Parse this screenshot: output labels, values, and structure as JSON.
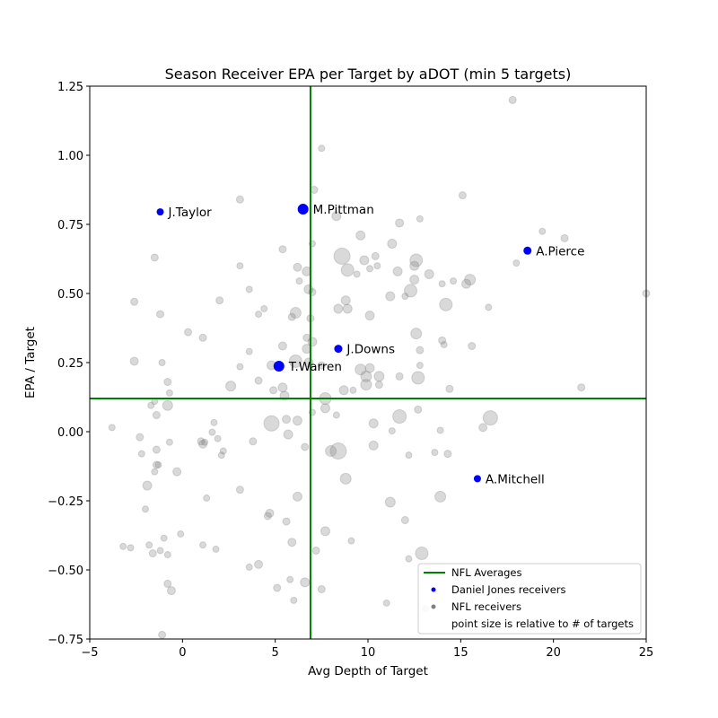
{
  "chart_data": {
    "type": "scatter",
    "title": "Season Receiver EPA per Target by aDOT (min 5 targets)",
    "xlabel": "Avg Depth of Target",
    "ylabel": "EPA / Target",
    "xlim": [
      -5,
      25
    ],
    "ylim": [
      -0.75,
      1.25
    ],
    "xticks": [
      "−5",
      "0",
      "5",
      "10",
      "15",
      "20",
      "25"
    ],
    "yticks": [
      "−0.75",
      "−0.50",
      "−0.25",
      "0.00",
      "0.25",
      "0.50",
      "0.75",
      "1.00",
      "1.25"
    ],
    "grid": false,
    "legend_position": "lower-right",
    "averages": {
      "x": 6.9,
      "y": 0.12,
      "color": "#008000"
    },
    "colors": {
      "highlight": "#0000ff",
      "background": "#808080"
    },
    "highlighted_series": {
      "name": "Daniel Jones receivers",
      "points": [
        {
          "label": "J.Taylor",
          "x": -1.2,
          "y": 0.795,
          "size": 4
        },
        {
          "label": "M.Pittman",
          "x": 6.5,
          "y": 0.805,
          "size": 6
        },
        {
          "label": "A.Pierce",
          "x": 18.6,
          "y": 0.655,
          "size": 4.5
        },
        {
          "label": "J.Downs",
          "x": 8.4,
          "y": 0.3,
          "size": 4.5
        },
        {
          "label": "T.Warren",
          "x": 5.2,
          "y": 0.237,
          "size": 6
        },
        {
          "label": "A.Mitchell",
          "x": 15.9,
          "y": -0.17,
          "size": 4
        }
      ]
    },
    "background_series": {
      "name": "NFL receivers",
      "points": [
        [
          17.8,
          1.2,
          4
        ],
        [
          7.5,
          1.025,
          3.5
        ],
        [
          7.1,
          0.875,
          4
        ],
        [
          3.1,
          0.84,
          4
        ],
        [
          15.1,
          0.855,
          4
        ],
        [
          8.3,
          0.78,
          5
        ],
        [
          11.7,
          0.755,
          4.5
        ],
        [
          12.8,
          0.77,
          3.5
        ],
        [
          9.6,
          0.71,
          5
        ],
        [
          19.4,
          0.725,
          3.5
        ],
        [
          20.6,
          0.7,
          4
        ],
        [
          5.4,
          0.66,
          4
        ],
        [
          7.0,
          0.68,
          3.5
        ],
        [
          11.3,
          0.68,
          5
        ],
        [
          8.6,
          0.635,
          9
        ],
        [
          9.8,
          0.62,
          5
        ],
        [
          10.4,
          0.635,
          4
        ],
        [
          12.6,
          0.62,
          7
        ],
        [
          18.0,
          0.61,
          3.5
        ],
        [
          3.1,
          0.6,
          3.5
        ],
        [
          6.2,
          0.595,
          4.5
        ],
        [
          6.7,
          0.58,
          5
        ],
        [
          8.9,
          0.585,
          7
        ],
        [
          9.4,
          0.57,
          3.5
        ],
        [
          10.1,
          0.59,
          3.5
        ],
        [
          10.5,
          0.6,
          3.5
        ],
        [
          11.6,
          0.58,
          5
        ],
        [
          12.5,
          0.6,
          5
        ],
        [
          13.3,
          0.57,
          5
        ],
        [
          14.0,
          0.535,
          3.5
        ],
        [
          14.6,
          0.545,
          3.5
        ],
        [
          15.3,
          0.535,
          5
        ],
        [
          15.5,
          0.55,
          6
        ],
        [
          6.3,
          0.545,
          3.5
        ],
        [
          12.5,
          0.55,
          5
        ],
        [
          -1.5,
          0.63,
          4
        ],
        [
          3.6,
          0.515,
          3.5
        ],
        [
          6.8,
          0.515,
          5
        ],
        [
          7.0,
          0.505,
          4
        ],
        [
          11.2,
          0.49,
          5
        ],
        [
          12.3,
          0.51,
          7
        ],
        [
          12.0,
          0.49,
          3.5
        ],
        [
          14.2,
          0.46,
          7
        ],
        [
          16.5,
          0.45,
          3.5
        ],
        [
          25.0,
          0.5,
          4
        ],
        [
          -2.6,
          0.47,
          4
        ],
        [
          2.0,
          0.475,
          4
        ],
        [
          8.8,
          0.475,
          5
        ],
        [
          8.9,
          0.445,
          5
        ],
        [
          8.4,
          0.445,
          5
        ],
        [
          -1.2,
          0.425,
          4
        ],
        [
          4.4,
          0.445,
          3.5
        ],
        [
          4.1,
          0.425,
          3.5
        ],
        [
          6.1,
          0.43,
          6
        ],
        [
          5.9,
          0.415,
          4
        ],
        [
          6.9,
          0.41,
          4
        ],
        [
          10.1,
          0.42,
          5
        ],
        [
          0.3,
          0.36,
          4
        ],
        [
          1.1,
          0.34,
          4
        ],
        [
          6.7,
          0.34,
          4
        ],
        [
          7.0,
          0.325,
          5
        ],
        [
          5.4,
          0.31,
          4.5
        ],
        [
          6.7,
          0.3,
          5
        ],
        [
          3.6,
          0.29,
          3.5
        ],
        [
          12.8,
          0.295,
          4
        ],
        [
          12.6,
          0.355,
          6
        ],
        [
          14.0,
          0.33,
          4
        ],
        [
          14.1,
          0.315,
          3.5
        ],
        [
          15.6,
          0.31,
          4
        ],
        [
          -2.6,
          0.255,
          4.5
        ],
        [
          -1.1,
          0.25,
          3.5
        ],
        [
          3.1,
          0.235,
          3.5
        ],
        [
          4.8,
          0.24,
          5
        ],
        [
          6.1,
          0.255,
          7
        ],
        [
          6.8,
          0.25,
          5
        ],
        [
          7.5,
          0.24,
          4
        ],
        [
          9.6,
          0.225,
          6
        ],
        [
          9.9,
          0.2,
          6
        ],
        [
          10.1,
          0.23,
          5
        ],
        [
          10.6,
          0.2,
          5.5
        ],
        [
          11.7,
          0.2,
          4
        ],
        [
          12.8,
          0.24,
          3.5
        ],
        [
          12.7,
          0.195,
          7
        ],
        [
          -0.8,
          0.18,
          4
        ],
        [
          2.6,
          0.165,
          5.5
        ],
        [
          4.1,
          0.185,
          4
        ],
        [
          4.9,
          0.15,
          4
        ],
        [
          5.4,
          0.16,
          5
        ],
        [
          5.5,
          0.13,
          5
        ],
        [
          8.7,
          0.15,
          5
        ],
        [
          9.2,
          0.15,
          3.5
        ],
        [
          9.9,
          0.17,
          6
        ],
        [
          10.6,
          0.17,
          4
        ],
        [
          14.4,
          0.155,
          4
        ],
        [
          21.5,
          0.16,
          4
        ],
        [
          -0.7,
          0.14,
          3.5
        ],
        [
          -1.7,
          0.095,
          3.5
        ],
        [
          -1.5,
          0.11,
          3.5
        ],
        [
          -0.8,
          0.095,
          5.5
        ],
        [
          7.7,
          0.12,
          6.5
        ],
        [
          7.7,
          0.085,
          5
        ],
        [
          7.0,
          0.07,
          3.5
        ],
        [
          -1.4,
          0.06,
          4
        ],
        [
          4.8,
          0.03,
          8.5
        ],
        [
          5.6,
          0.045,
          4.5
        ],
        [
          6.2,
          0.04,
          5
        ],
        [
          8.3,
          0.06,
          3.5
        ],
        [
          10.3,
          0.03,
          5
        ],
        [
          11.7,
          0.055,
          7.5
        ],
        [
          12.7,
          0.08,
          4
        ],
        [
          -3.8,
          0.015,
          3.5
        ],
        [
          5.7,
          -0.01,
          5
        ],
        [
          11.3,
          0.003,
          3.5
        ],
        [
          13.9,
          0.005,
          3.5
        ],
        [
          16.2,
          0.015,
          4.5
        ],
        [
          16.6,
          0.05,
          8
        ],
        [
          1.7,
          0.033,
          3.5
        ],
        [
          1.6,
          -0.002,
          3.5
        ],
        [
          -2.3,
          -0.02,
          4
        ],
        [
          -0.7,
          -0.038,
          3.5
        ],
        [
          1.0,
          -0.035,
          4
        ],
        [
          1.1,
          -0.045,
          4.5
        ],
        [
          1.2,
          -0.038,
          3.5
        ],
        [
          1.9,
          -0.025,
          3.5
        ],
        [
          3.8,
          -0.035,
          4
        ],
        [
          6.6,
          -0.055,
          4
        ],
        [
          8.0,
          -0.07,
          6
        ],
        [
          8.4,
          -0.07,
          9
        ],
        [
          10.3,
          -0.05,
          5
        ],
        [
          -2.2,
          -0.08,
          3.5
        ],
        [
          -1.4,
          -0.065,
          4
        ],
        [
          2.2,
          -0.07,
          3.5
        ],
        [
          2.1,
          -0.085,
          3.5
        ],
        [
          12.2,
          -0.085,
          3.5
        ],
        [
          13.6,
          -0.075,
          3.5
        ],
        [
          14.3,
          -0.08,
          4
        ],
        [
          -1.4,
          -0.12,
          4
        ],
        [
          -1.3,
          -0.12,
          3.5
        ],
        [
          -1.5,
          -0.145,
          3.5
        ],
        [
          -0.3,
          -0.145,
          4.5
        ],
        [
          -1.9,
          -0.195,
          5
        ],
        [
          8.8,
          -0.17,
          6
        ],
        [
          1.3,
          -0.24,
          3.5
        ],
        [
          3.1,
          -0.21,
          4
        ],
        [
          6.2,
          -0.235,
          5
        ],
        [
          11.2,
          -0.255,
          5.5
        ],
        [
          13.9,
          -0.235,
          6
        ],
        [
          -2.0,
          -0.28,
          3.5
        ],
        [
          4.6,
          -0.305,
          4
        ],
        [
          4.7,
          -0.295,
          4.5
        ],
        [
          5.6,
          -0.325,
          4
        ],
        [
          7.7,
          -0.36,
          5
        ],
        [
          12.0,
          -0.32,
          4
        ],
        [
          -1.0,
          -0.385,
          3.5
        ],
        [
          -0.1,
          -0.37,
          3.5
        ],
        [
          -3.2,
          -0.415,
          3.5
        ],
        [
          -2.8,
          -0.42,
          3.5
        ],
        [
          -1.8,
          -0.41,
          3.5
        ],
        [
          1.1,
          -0.41,
          3.5
        ],
        [
          1.8,
          -0.425,
          3.5
        ],
        [
          5.9,
          -0.4,
          4.5
        ],
        [
          7.2,
          -0.43,
          4
        ],
        [
          9.1,
          -0.395,
          3.5
        ],
        [
          -1.6,
          -0.44,
          4
        ],
        [
          -0.8,
          -0.445,
          3.5
        ],
        [
          -1.2,
          -0.43,
          3.5
        ],
        [
          3.6,
          -0.49,
          3.5
        ],
        [
          4.1,
          -0.48,
          4.5
        ],
        [
          12.2,
          -0.46,
          3.5
        ],
        [
          12.9,
          -0.44,
          7
        ],
        [
          -0.8,
          -0.55,
          4
        ],
        [
          -0.6,
          -0.575,
          4.5
        ],
        [
          5.1,
          -0.565,
          4
        ],
        [
          5.8,
          -0.535,
          3.5
        ],
        [
          6.6,
          -0.545,
          5
        ],
        [
          7.5,
          -0.57,
          4
        ],
        [
          6.0,
          -0.61,
          3.5
        ],
        [
          11.0,
          -0.62,
          3.5
        ],
        [
          13.1,
          -0.64,
          3.5
        ],
        [
          -1.1,
          -0.735,
          4
        ]
      ]
    },
    "legend": [
      {
        "label": "NFL Averages",
        "marker": "line"
      },
      {
        "label": "Daniel Jones receivers",
        "marker": "blue-dot"
      },
      {
        "label": "NFL receivers",
        "marker": "gray-dot"
      },
      {
        "label": "point size is relative to # of targets",
        "marker": "none"
      }
    ]
  }
}
